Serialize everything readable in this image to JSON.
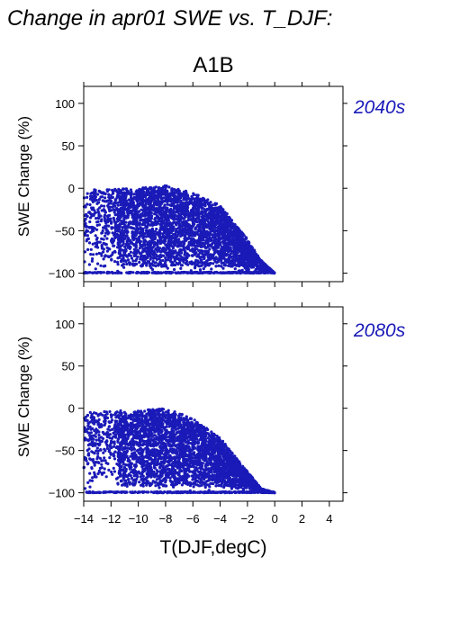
{
  "page_title": "Change in apr01 SWE vs. T_DJF:",
  "chart_data": {
    "type": "scatter",
    "title": "A1B",
    "xlabel": "T(DJF,degC)",
    "ylabel": "SWE Change (%)",
    "xlim": [
      -14,
      5
    ],
    "ylim": [
      -110,
      120
    ],
    "xticks": [
      -14,
      -12,
      -10,
      -8,
      -6,
      -4,
      -2,
      0,
      2,
      4
    ],
    "xtick_labels": [
      "−14",
      "−12",
      "−10",
      "−8",
      "−6",
      "−4",
      "−2",
      "0",
      "2",
      "4"
    ],
    "yticks": [
      -100,
      -50,
      0,
      50,
      100
    ],
    "ytick_labels": [
      "−100",
      "−50",
      "0",
      "50",
      "100"
    ],
    "point_color": "#1a1ab8",
    "panels": [
      {
        "label": "2040s",
        "envelope": {
          "upper": [
            [
              -14,
              -2
            ],
            [
              -10,
              0
            ],
            [
              -8,
              3
            ],
            [
              -6,
              -5
            ],
            [
              -4,
              -20
            ],
            [
              -2,
              -60
            ],
            [
              -1,
              -85
            ],
            [
              0,
              -100
            ]
          ],
          "lower_bound": -100,
          "x_min": -14,
          "x_max": 0
        }
      },
      {
        "label": "2080s",
        "envelope": {
          "upper": [
            [
              -14,
              -5
            ],
            [
              -10,
              -2
            ],
            [
              -8,
              0
            ],
            [
              -6,
              -12
            ],
            [
              -4,
              -35
            ],
            [
              -2,
              -75
            ],
            [
              -1,
              -95
            ],
            [
              0,
              -100
            ]
          ],
          "lower_bound": -100,
          "x_min": -14,
          "x_max": 0
        }
      }
    ]
  }
}
